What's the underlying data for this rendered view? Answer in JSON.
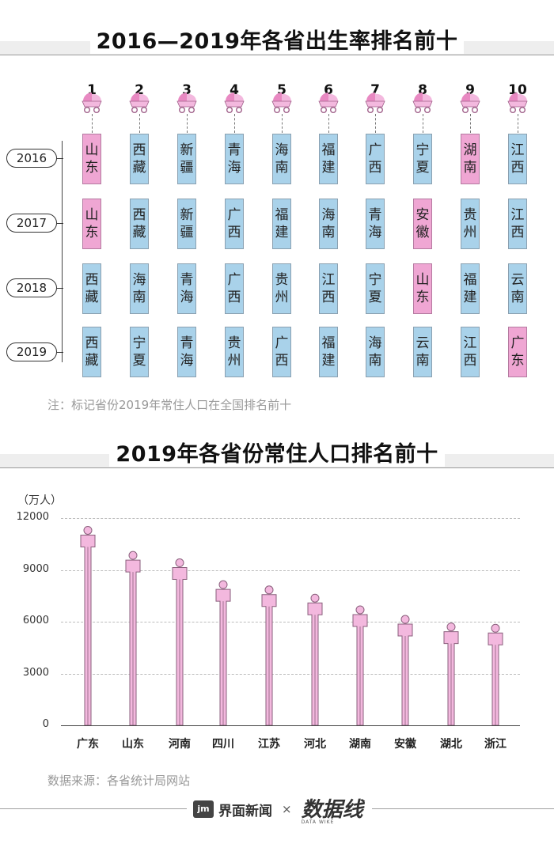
{
  "top_chart": {
    "title": "2016—2019年各省出生率排名前十",
    "ranks": [
      "1",
      "2",
      "3",
      "4",
      "5",
      "6",
      "7",
      "8",
      "9",
      "10"
    ],
    "years": [
      {
        "year": "2016",
        "provinces": [
          "山东",
          "西藏",
          "新疆",
          "青海",
          "海南",
          "福建",
          "广西",
          "宁夏",
          "湖南",
          "江西"
        ],
        "highlight": [
          true,
          false,
          false,
          false,
          false,
          false,
          false,
          false,
          true,
          false
        ]
      },
      {
        "year": "2017",
        "provinces": [
          "山东",
          "西藏",
          "新疆",
          "广西",
          "福建",
          "海南",
          "青海",
          "安徽",
          "贵州",
          "江西"
        ],
        "highlight": [
          true,
          false,
          false,
          false,
          false,
          false,
          false,
          true,
          false,
          false
        ]
      },
      {
        "year": "2018",
        "provinces": [
          "西藏",
          "海南",
          "青海",
          "广西",
          "贵州",
          "江西",
          "宁夏",
          "山东",
          "福建",
          "云南"
        ],
        "highlight": [
          false,
          false,
          false,
          false,
          false,
          false,
          false,
          true,
          false,
          false
        ]
      },
      {
        "year": "2019",
        "provinces": [
          "西藏",
          "宁夏",
          "青海",
          "贵州",
          "广西",
          "福建",
          "海南",
          "云南",
          "江西",
          "广东"
        ],
        "highlight": [
          false,
          false,
          false,
          false,
          false,
          false,
          false,
          false,
          false,
          true
        ]
      }
    ],
    "note": "注：标记省份2019年常住人口在全国排名前十"
  },
  "chart_data": {
    "type": "bar",
    "title": "2019年各省份常住人口排名前十",
    "ylabel": "（万人）",
    "xlabel": "",
    "categories": [
      "广东",
      "山东",
      "河南",
      "四川",
      "江苏",
      "河北",
      "湖南",
      "安徽",
      "湖北",
      "浙江"
    ],
    "values": [
      11521,
      10070,
      9640,
      8375,
      8070,
      7592,
      6918,
      6366,
      5927,
      5850
    ],
    "ylim": [
      0,
      12000
    ],
    "yticks": [
      "0",
      "3000",
      "6000",
      "9000",
      "12000"
    ],
    "grid": true
  },
  "source": "数据来源：各省统计局网站",
  "footer": {
    "brand": "界面新闻",
    "times": "×",
    "brand2": "数据线",
    "brand2_sub": "DATA WIKE",
    "logo": "jm"
  },
  "colors": {
    "pink": "#efa6d3",
    "blue": "#a9d2ea",
    "bar": "#f3b8de",
    "bar_stroke": "#8a5f7c"
  }
}
